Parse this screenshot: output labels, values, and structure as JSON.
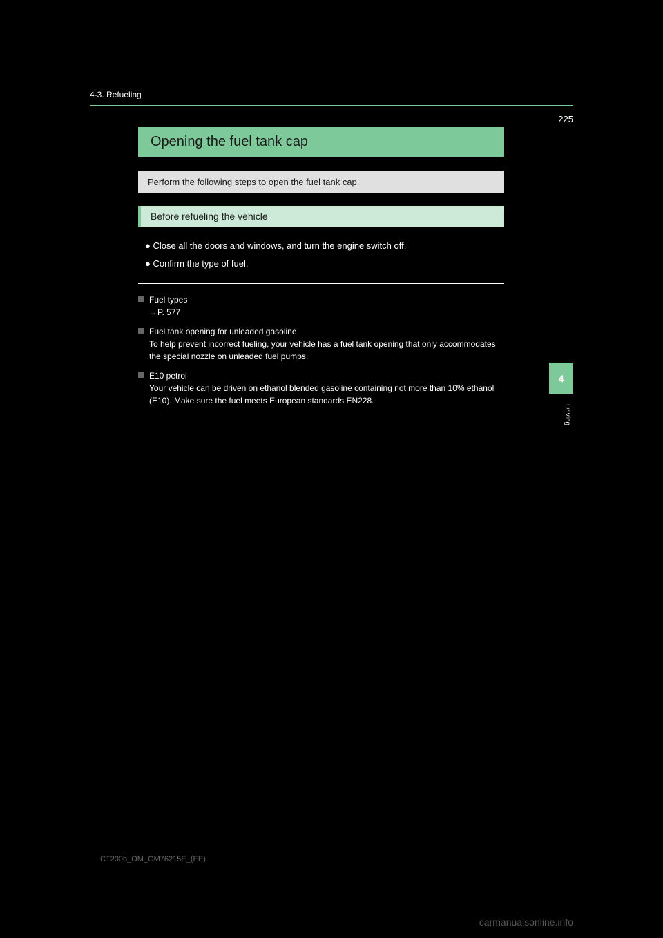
{
  "page_number": "225",
  "breadcrumb": "4-3. Refueling",
  "section_title": "Opening the fuel tank cap",
  "intro_text": "Perform the following steps to open the fuel tank cap.",
  "subsection_title": "Before refueling the vehicle",
  "body_lines": [
    "● Close all the doors and windows, and turn the engine switch off.",
    "● Confirm the type of fuel."
  ],
  "info_items": [
    {
      "title": "Fuel types",
      "text": "→P. 577"
    },
    {
      "title": "Fuel tank opening for unleaded gasoline",
      "text": "To help prevent incorrect fueling, your vehicle has a fuel tank opening that only accommodates the special nozzle on unleaded fuel pumps."
    },
    {
      "title": "E10 petrol",
      "text": "Your vehicle can be driven on ethanol blended gasoline containing not more than 10% ethanol (E10). Make sure the fuel meets European standards EN228."
    }
  ],
  "side_tab_number": "4",
  "side_text": "Driving",
  "doc_code": "CT200h_OM_OM76215E_(EE)",
  "footer": "carmanualsonline.info",
  "colors": {
    "accent_green": "#7dc99a",
    "light_green": "#cde9d7",
    "light_gray": "#e0e0e0",
    "background": "#000000"
  }
}
